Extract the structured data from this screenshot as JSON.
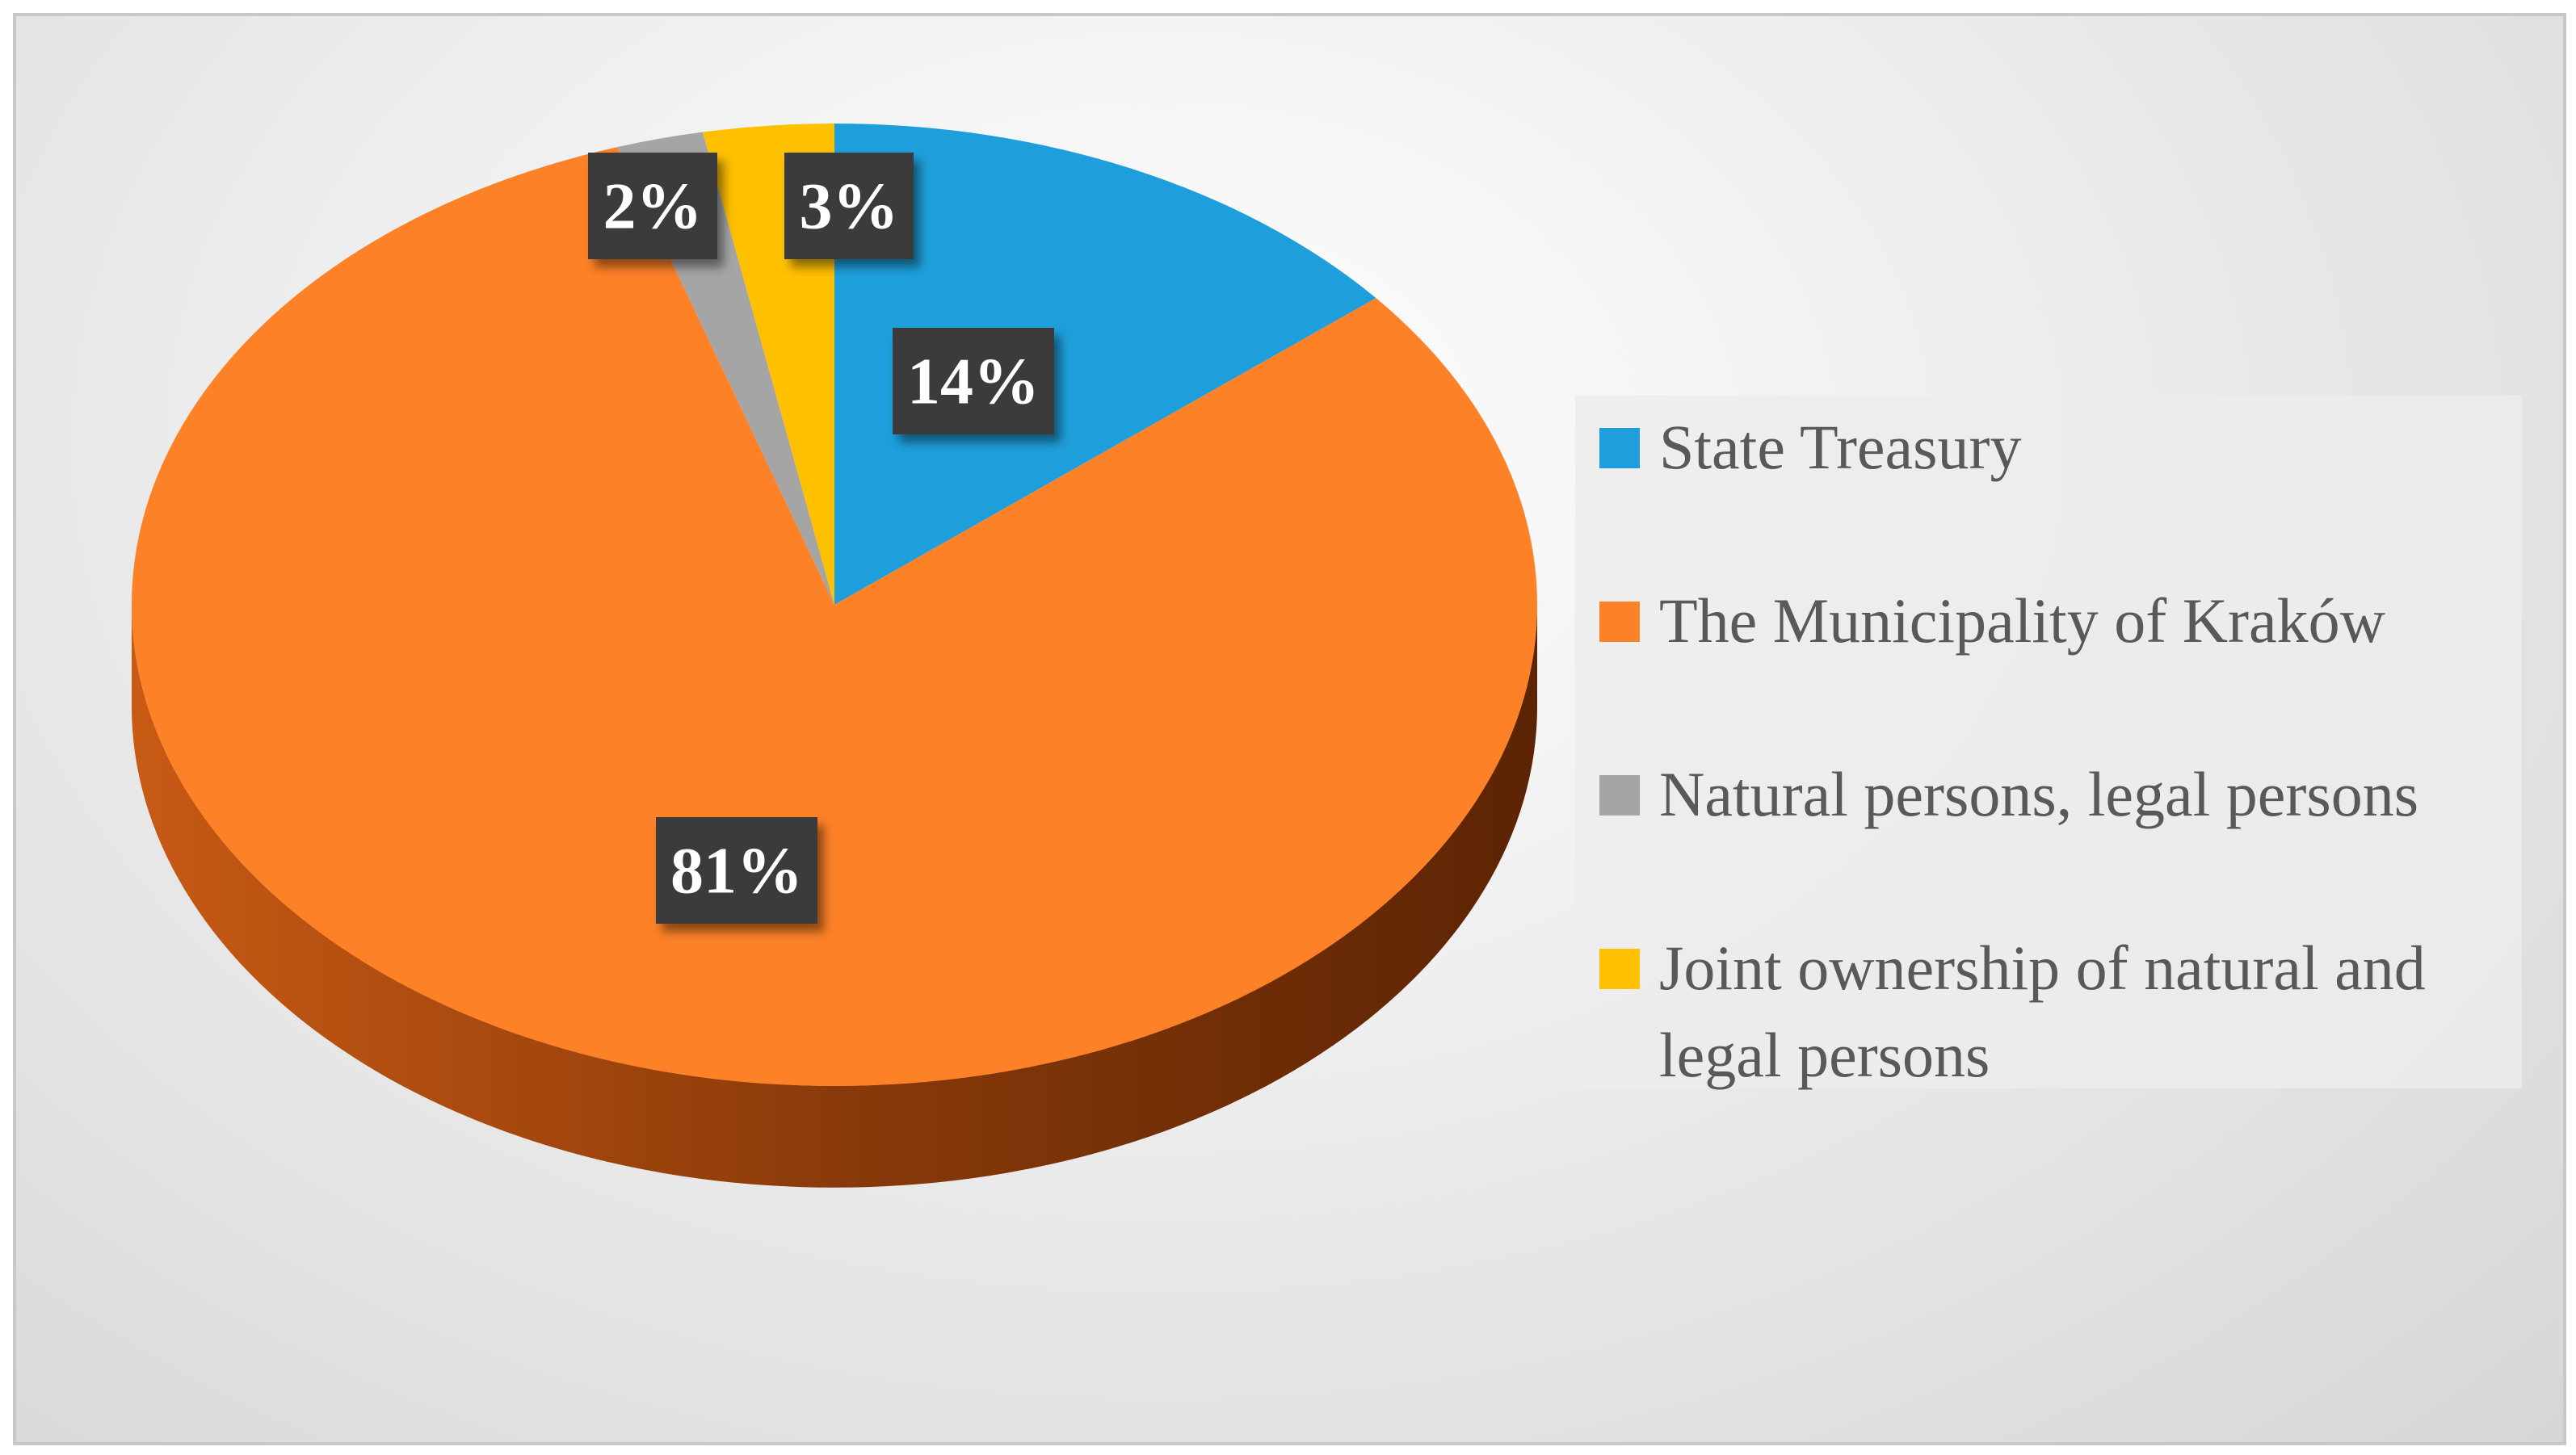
{
  "chart_data": {
    "type": "pie",
    "categories": [
      "State Treasury",
      "The Municipality of Kraków",
      "Natural persons, legal persons",
      "Joint ownership of natural and legal persons"
    ],
    "values": [
      14,
      81,
      2,
      3
    ],
    "value_labels": [
      "14%",
      "81%",
      "2%",
      "3%"
    ],
    "colors": [
      "#1e9fdb",
      "#fd8126",
      "#a5a5a5",
      "#ffc000"
    ],
    "legend": "right"
  }
}
